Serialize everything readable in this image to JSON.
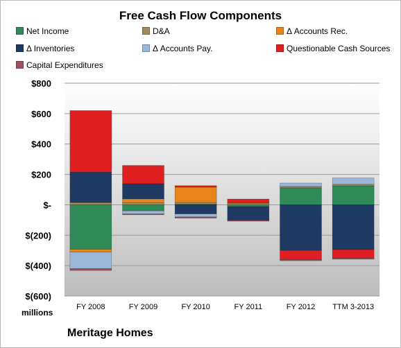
{
  "chart_data": {
    "type": "bar",
    "stacked": true,
    "title": "Free Cash Flow Components",
    "units_label": "millions",
    "company": "Meritage Homes",
    "categories": [
      "FY 2008",
      "FY 2009",
      "FY 2010",
      "FY 2011",
      "FY 2012",
      "TTM 3-2013"
    ],
    "ylim": [
      -600,
      800
    ],
    "yticks": [
      800,
      600,
      400,
      200,
      0,
      -200,
      -400,
      -600
    ],
    "ytick_labels": [
      "$800",
      "$600",
      "$400",
      "$200",
      "$-",
      "$(200)",
      "$(400)",
      "$(600)"
    ],
    "grid": true,
    "legend_position": "top",
    "series": [
      {
        "name": "Net Income",
        "color": "#2e8b57",
        "values": [
          -292,
          -40,
          4,
          -12,
          112,
          125
        ]
      },
      {
        "name": "D&A",
        "color": "#a08a5a",
        "values": [
          15,
          14,
          12,
          10,
          9,
          10
        ]
      },
      {
        "name": "Δ Accounts Rec.",
        "color": "#e8841a",
        "values": [
          -18,
          25,
          100,
          3,
          0,
          0
        ]
      },
      {
        "name": "Δ Inventories",
        "color": "#1f3a63",
        "values": [
          200,
          100,
          -60,
          -90,
          -300,
          -295
        ]
      },
      {
        "name": "Δ Accounts Pay.",
        "color": "#9ab6d8",
        "values": [
          -110,
          -20,
          -20,
          0,
          22,
          42
        ]
      },
      {
        "name": "Questionable Cash Sources",
        "color": "#e02020",
        "values": [
          405,
          120,
          10,
          25,
          -60,
          -55
        ]
      },
      {
        "name": "Capital Expenditures",
        "color": "#a05060",
        "values": [
          -12,
          -6,
          -8,
          -6,
          -8,
          -8
        ]
      }
    ]
  }
}
